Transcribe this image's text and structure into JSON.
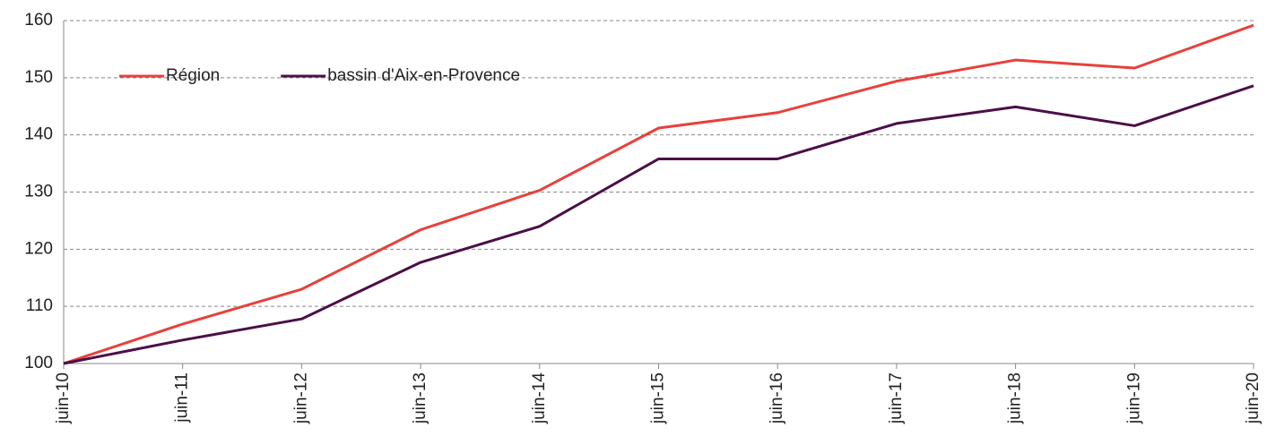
{
  "chart_data": {
    "type": "line",
    "categories": [
      "juin-10",
      "juin-11",
      "juin-12",
      "juin-13",
      "juin-14",
      "juin-15",
      "juin-16",
      "juin-17",
      "juin-18",
      "juin-19",
      "juin-20"
    ],
    "series": [
      {
        "name": "Région",
        "color": "#e8413b",
        "values": [
          100,
          106.9,
          113.0,
          123.4,
          130.3,
          141.2,
          143.9,
          149.4,
          153.1,
          151.7,
          159.2
        ]
      },
      {
        "name": "bassin d'Aix-en-Provence",
        "color": "#4b0f48",
        "values": [
          100,
          104.1,
          107.8,
          117.7,
          124.0,
          135.8,
          135.8,
          142.0,
          144.9,
          141.6,
          148.6
        ]
      }
    ],
    "ylim": [
      100,
      160
    ],
    "yticks": [
      100,
      110,
      120,
      130,
      140,
      150,
      160
    ],
    "grid": true,
    "legend": "upper left"
  }
}
